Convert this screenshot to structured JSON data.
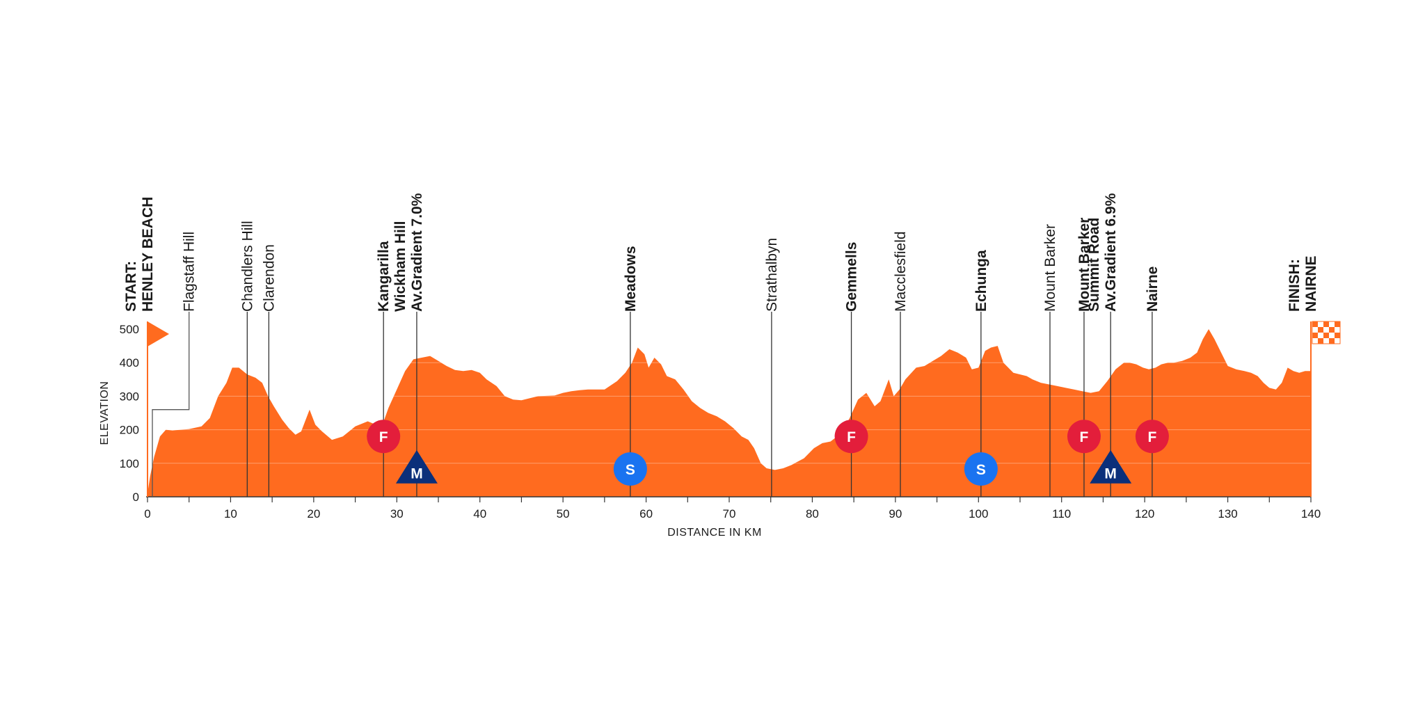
{
  "chart_data": {
    "type": "area",
    "title": "",
    "xlabel": "DISTANCE IN KM",
    "ylabel": "ELEVATION",
    "xlim": [
      0,
      140
    ],
    "ylim": [
      0,
      500
    ],
    "x_ticks": [
      0,
      10,
      20,
      30,
      40,
      50,
      60,
      70,
      80,
      90,
      100,
      110,
      120,
      130,
      140
    ],
    "y_ticks": [
      0,
      100,
      200,
      300,
      400,
      500
    ],
    "grid": "horizontal",
    "colors": {
      "area": "#ff6b1f",
      "mountain": "#0b2f7a",
      "sprint": "#1a73f0",
      "feed": "#e31e3b",
      "flag": "#ff6b1f"
    },
    "series": [
      {
        "x": [
          0,
          0.3,
          0.8,
          1.5,
          2.2,
          3,
          5,
          6.5,
          7.5,
          8.5,
          9.5,
          10.2,
          11,
          12,
          13,
          13.8,
          14.5,
          15.2,
          16.2,
          17,
          17.8,
          18.5,
          19.5,
          20.2,
          21,
          22.2,
          23.5,
          25,
          26.5,
          27.5,
          28.2,
          29,
          30,
          31,
          32,
          33,
          34,
          35,
          36,
          37,
          38,
          39,
          40,
          40.8,
          42,
          43,
          44,
          45,
          47,
          49,
          50,
          51,
          52,
          53,
          55,
          56.5,
          57.5,
          58.3,
          59,
          59.8,
          60.3,
          61,
          61.8,
          62.5,
          63.5,
          64.5,
          65.5,
          66.5,
          67.5,
          68.5,
          69.5,
          70.5,
          71.5,
          72.3,
          73,
          73.8,
          74.5,
          75.5,
          76.5,
          77.5,
          79,
          80.2,
          81.2,
          82.2,
          83.5,
          84.5,
          85.5,
          86.5,
          87.5,
          88.2,
          89.2,
          89.8,
          90.5,
          91.2,
          92.5,
          93.5,
          94.5,
          95.5,
          96.5,
          97.5,
          98.5,
          99.2,
          100,
          100.8,
          101.5,
          102.3,
          103,
          104.2,
          105,
          105.8,
          106.5,
          107.5,
          108.5,
          109.5,
          110.5,
          111.5,
          112.5,
          113.5,
          114.5,
          115.5,
          116.5,
          117.5,
          118.2,
          119,
          119.8,
          120.5,
          121.3,
          122,
          122.8,
          123.5,
          124.5,
          125.5,
          126.3,
          127,
          127.7,
          128.4,
          129.2,
          130,
          131,
          132,
          132.8,
          133.6,
          134.3,
          135,
          135.8,
          136.5,
          137.2,
          137.9,
          138.6,
          139.3,
          140
        ],
        "y": [
          10,
          60,
          120,
          180,
          200,
          198,
          202,
          210,
          235,
          300,
          340,
          385,
          385,
          365,
          355,
          340,
          300,
          270,
          230,
          205,
          185,
          195,
          260,
          215,
          195,
          170,
          180,
          210,
          225,
          215,
          210,
          265,
          320,
          375,
          410,
          415,
          420,
          405,
          390,
          378,
          375,
          378,
          370,
          350,
          330,
          300,
          290,
          288,
          300,
          302,
          310,
          315,
          318,
          320,
          320,
          345,
          370,
          400,
          445,
          425,
          385,
          415,
          395,
          360,
          350,
          320,
          285,
          265,
          250,
          240,
          225,
          205,
          180,
          170,
          145,
          100,
          85,
          80,
          85,
          95,
          115,
          145,
          160,
          165,
          190,
          235,
          290,
          310,
          270,
          285,
          350,
          300,
          320,
          350,
          385,
          390,
          405,
          420,
          440,
          430,
          415,
          380,
          385,
          435,
          445,
          450,
          400,
          370,
          365,
          360,
          350,
          340,
          335,
          330,
          325,
          320,
          315,
          310,
          315,
          345,
          380,
          400,
          400,
          395,
          385,
          380,
          385,
          395,
          400,
          400,
          405,
          415,
          430,
          470,
          500,
          470,
          430,
          390,
          380,
          375,
          370,
          360,
          340,
          325,
          320,
          340,
          385,
          375,
          370,
          375,
          375
        ]
      }
    ],
    "places": [
      {
        "km": 0,
        "label": "START:\nHENLEY BEACH",
        "bold": true,
        "line": "start"
      },
      {
        "km": 5,
        "label": "Flagstaff Hill",
        "bold": false,
        "line": "step"
      },
      {
        "km": 12,
        "label": "Chandlers Hill",
        "bold": false,
        "line": "normal"
      },
      {
        "km": 14.6,
        "label": "Clarendon",
        "bold": false,
        "line": "normal"
      },
      {
        "km": 28.4,
        "label": "Kangarilla",
        "bold": true,
        "line": "normal"
      },
      {
        "km": 32.4,
        "label": "Wickham Hill\nAv.Gradient 7.0%",
        "bold": true,
        "line": "normal"
      },
      {
        "km": 58.1,
        "label": "Meadows",
        "bold": true,
        "line": "normal"
      },
      {
        "km": 75.1,
        "label": "Strathalbyn",
        "bold": false,
        "line": "normal"
      },
      {
        "km": 84.7,
        "label": "Gemmells",
        "bold": true,
        "line": "normal"
      },
      {
        "km": 90.6,
        "label": "Macclesfield",
        "bold": false,
        "line": "normal"
      },
      {
        "km": 100.3,
        "label": "Echunga",
        "bold": true,
        "line": "normal"
      },
      {
        "km": 108.6,
        "label": "Mount Barker",
        "bold": false,
        "line": "normal"
      },
      {
        "km": 112.7,
        "label": "Mount Barker",
        "bold": true,
        "line": "normal"
      },
      {
        "km": 115.9,
        "label": "Summit Road\nAv.Gradient 6.9%",
        "bold": true,
        "line": "normal"
      },
      {
        "km": 120.9,
        "label": "Nairne",
        "bold": true,
        "line": "normal"
      },
      {
        "km": 140,
        "label": "FINISH:\nNAIRNE",
        "bold": true,
        "line": "finish"
      }
    ],
    "markers": [
      {
        "km": 28.4,
        "type": "feed",
        "letter": "F"
      },
      {
        "km": 32.4,
        "type": "mountain",
        "letter": "M"
      },
      {
        "km": 58.1,
        "type": "sprint",
        "letter": "S"
      },
      {
        "km": 84.7,
        "type": "feed",
        "letter": "F"
      },
      {
        "km": 100.3,
        "type": "sprint",
        "letter": "S"
      },
      {
        "km": 112.7,
        "type": "feed",
        "letter": "F"
      },
      {
        "km": 115.9,
        "type": "mountain",
        "letter": "M"
      },
      {
        "km": 120.9,
        "type": "feed",
        "letter": "F"
      }
    ]
  }
}
